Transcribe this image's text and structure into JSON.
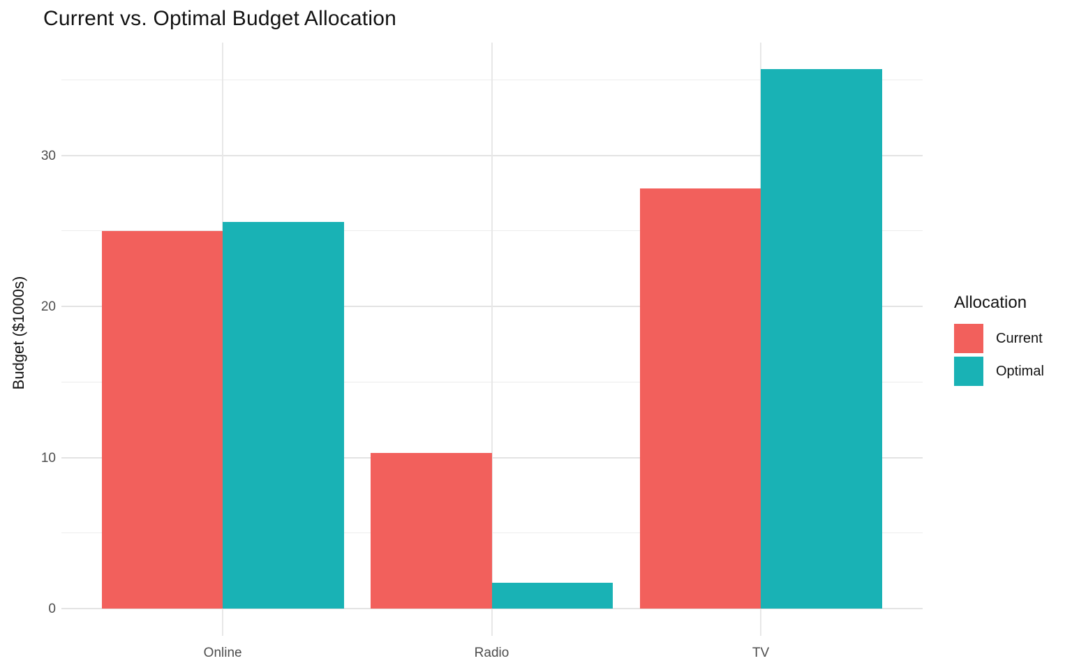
{
  "chart_data": {
    "type": "bar",
    "title": "Current vs. Optimal Budget Allocation",
    "ylabel": "Budget ($1000s)",
    "xlabel": "",
    "categories": [
      "Online",
      "Radio",
      "TV"
    ],
    "series": [
      {
        "name": "Current",
        "color": "#F2605C",
        "values": [
          25.0,
          10.3,
          27.8
        ]
      },
      {
        "name": "Optimal",
        "color": "#19B2B5",
        "values": [
          25.6,
          1.7,
          35.7
        ]
      }
    ],
    "legend_title": "Allocation",
    "legend_position": "right",
    "y_ticks_major": [
      0,
      10,
      20,
      30
    ],
    "y_gridlines_minor": [
      5,
      15,
      25,
      35
    ],
    "ylim": [
      0,
      35.7
    ],
    "grid": true,
    "grouping": "dodged",
    "background": "#FFFFFF"
  },
  "style_colors": {
    "grid_major": "#E3E3E3",
    "grid_minor": "#ECECEC",
    "axis_text": "#4D4D4D",
    "title_text": "#121212"
  }
}
